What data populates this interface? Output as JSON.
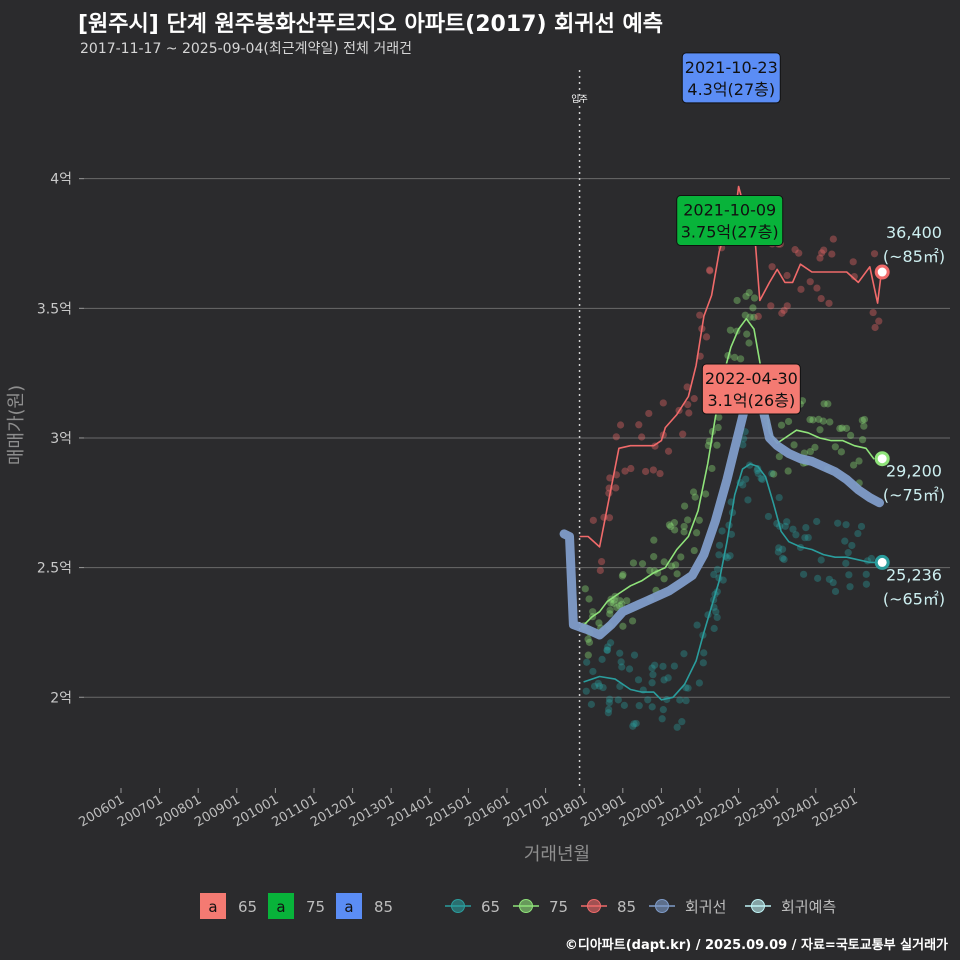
{
  "title": "[원주시] 단계 원주봉화산푸르지오 아파트(2017) 회귀선 예측",
  "subtitle": "2017-11-17 ~ 2025-09-04(최근계약일) 전체 거래건",
  "caption": "©디아파트(dapt.kr) / 2025.09.09 / 자료=국토교통부 실거래가",
  "colors": {
    "s65": "#2a9d9d",
    "s75": "#8fe37a",
    "s85": "#f06a6a",
    "regression": "#7f9cc9",
    "forecast": "#bff3f5",
    "bg": "#2b2b2d",
    "grid": "#6a6a6a"
  },
  "chart_data": {
    "type": "line",
    "title": "[원주시] 단계 원주봉화산푸르지오 아파트(2017) 회귀선 예측",
    "xlabel": "거래년월",
    "ylabel": "매매가(원)",
    "xlim": [
      2006.0,
      2026.0
    ],
    "ylim": [
      1.65,
      4.45
    ],
    "y_ticks": [
      {
        "value": 2.0,
        "label": "2억"
      },
      {
        "value": 2.5,
        "label": "2.5억"
      },
      {
        "value": 3.0,
        "label": "3억"
      },
      {
        "value": 3.5,
        "label": "3.5억"
      },
      {
        "value": 4.0,
        "label": "4억"
      }
    ],
    "x_ticks": [
      {
        "value": 2006,
        "label": "200601"
      },
      {
        "value": 2007,
        "label": "200701"
      },
      {
        "value": 2008,
        "label": "200801"
      },
      {
        "value": 2009,
        "label": "200901"
      },
      {
        "value": 2010,
        "label": "201001"
      },
      {
        "value": 2011,
        "label": "201101"
      },
      {
        "value": 2012,
        "label": "201201"
      },
      {
        "value": 2013,
        "label": "201301"
      },
      {
        "value": 2014,
        "label": "201401"
      },
      {
        "value": 2015,
        "label": "201501"
      },
      {
        "value": 2016,
        "label": "201601"
      },
      {
        "value": 2017,
        "label": "201701"
      },
      {
        "value": 2018,
        "label": "201801"
      },
      {
        "value": 2019,
        "label": "201901"
      },
      {
        "value": 2020,
        "label": "202001"
      },
      {
        "value": 2021,
        "label": "202101"
      },
      {
        "value": 2022,
        "label": "202201"
      },
      {
        "value": 2023,
        "label": "202301"
      },
      {
        "value": 2024,
        "label": "202401"
      },
      {
        "value": 2025,
        "label": "202501"
      }
    ],
    "move_in": {
      "x": 2017.88,
      "label": "입주"
    },
    "series": [
      {
        "name": "65",
        "key": "s65",
        "points": [
          [
            2018.0,
            2.06
          ],
          [
            2018.4,
            2.08
          ],
          [
            2018.8,
            2.07
          ],
          [
            2019.2,
            2.03
          ],
          [
            2019.5,
            2.02
          ],
          [
            2019.8,
            2.02
          ],
          [
            2020.0,
            1.99
          ],
          [
            2020.3,
            2.0
          ],
          [
            2020.6,
            2.05
          ],
          [
            2020.9,
            2.14
          ],
          [
            2021.1,
            2.25
          ],
          [
            2021.3,
            2.35
          ],
          [
            2021.5,
            2.45
          ],
          [
            2021.7,
            2.6
          ],
          [
            2021.9,
            2.78
          ],
          [
            2022.1,
            2.88
          ],
          [
            2022.3,
            2.9
          ],
          [
            2022.5,
            2.89
          ],
          [
            2022.7,
            2.85
          ],
          [
            2022.9,
            2.75
          ],
          [
            2023.1,
            2.64
          ],
          [
            2023.3,
            2.6
          ],
          [
            2023.6,
            2.58
          ],
          [
            2023.9,
            2.57
          ],
          [
            2024.2,
            2.55
          ],
          [
            2024.5,
            2.54
          ],
          [
            2024.8,
            2.54
          ],
          [
            2025.1,
            2.53
          ],
          [
            2025.4,
            2.52
          ],
          [
            2025.65,
            2.52
          ]
        ]
      },
      {
        "name": "75",
        "key": "s75",
        "points": [
          [
            2018.0,
            2.28
          ],
          [
            2018.2,
            2.31
          ],
          [
            2018.4,
            2.33
          ],
          [
            2018.6,
            2.37
          ],
          [
            2018.9,
            2.4
          ],
          [
            2019.2,
            2.43
          ],
          [
            2019.5,
            2.45
          ],
          [
            2019.8,
            2.48
          ],
          [
            2020.1,
            2.5
          ],
          [
            2020.4,
            2.57
          ],
          [
            2020.7,
            2.62
          ],
          [
            2020.95,
            2.72
          ],
          [
            2021.2,
            2.9
          ],
          [
            2021.4,
            3.08
          ],
          [
            2021.6,
            3.24
          ],
          [
            2021.8,
            3.35
          ],
          [
            2022.0,
            3.42
          ],
          [
            2022.2,
            3.46
          ],
          [
            2022.4,
            3.42
          ],
          [
            2022.6,
            3.25
          ],
          [
            2022.8,
            3.02
          ],
          [
            2023.0,
            2.98
          ],
          [
            2023.2,
            3.0
          ],
          [
            2023.5,
            3.03
          ],
          [
            2023.8,
            3.02
          ],
          [
            2024.1,
            3.0
          ],
          [
            2024.4,
            2.99
          ],
          [
            2024.7,
            2.99
          ],
          [
            2025.0,
            2.97
          ],
          [
            2025.3,
            2.96
          ],
          [
            2025.5,
            2.92
          ]
        ]
      },
      {
        "name": "85",
        "key": "s85",
        "points": [
          [
            2017.9,
            2.62
          ],
          [
            2018.1,
            2.62
          ],
          [
            2018.4,
            2.58
          ],
          [
            2018.9,
            2.96
          ],
          [
            2019.2,
            2.97
          ],
          [
            2019.5,
            2.97
          ],
          [
            2019.8,
            2.97
          ],
          [
            2020.0,
            2.99
          ],
          [
            2020.1,
            3.04
          ],
          [
            2020.4,
            3.09
          ],
          [
            2020.7,
            3.16
          ],
          [
            2020.9,
            3.28
          ],
          [
            2021.1,
            3.47
          ],
          [
            2021.3,
            3.55
          ],
          [
            2021.5,
            3.72
          ],
          [
            2021.7,
            3.82
          ],
          [
            2021.9,
            3.85
          ],
          [
            2022.0,
            3.97
          ],
          [
            2022.2,
            3.86
          ],
          [
            2022.4,
            3.82
          ],
          [
            2022.55,
            3.53
          ],
          [
            2022.8,
            3.6
          ],
          [
            2023.0,
            3.65
          ],
          [
            2023.2,
            3.6
          ],
          [
            2023.4,
            3.6
          ],
          [
            2023.6,
            3.67
          ],
          [
            2023.9,
            3.64
          ],
          [
            2024.2,
            3.64
          ],
          [
            2024.5,
            3.64
          ],
          [
            2024.8,
            3.64
          ],
          [
            2025.1,
            3.6
          ],
          [
            2025.4,
            3.66
          ],
          [
            2025.6,
            3.52
          ],
          [
            2025.7,
            3.64
          ]
        ]
      },
      {
        "name": "회귀선",
        "key": "regression",
        "points": [
          [
            2017.48,
            2.63
          ],
          [
            2017.62,
            2.62
          ],
          [
            2017.72,
            2.28
          ],
          [
            2017.9,
            2.27
          ],
          [
            2018.1,
            2.26
          ],
          [
            2018.4,
            2.24
          ],
          [
            2018.7,
            2.28
          ],
          [
            2019.0,
            2.33
          ],
          [
            2019.3,
            2.35
          ],
          [
            2019.6,
            2.37
          ],
          [
            2019.9,
            2.39
          ],
          [
            2020.2,
            2.41
          ],
          [
            2020.5,
            2.44
          ],
          [
            2020.8,
            2.47
          ],
          [
            2021.1,
            2.55
          ],
          [
            2021.4,
            2.68
          ],
          [
            2021.7,
            2.84
          ],
          [
            2021.9,
            2.96
          ],
          [
            2022.1,
            3.08
          ],
          [
            2022.3,
            3.2
          ],
          [
            2022.45,
            3.22
          ],
          [
            2022.6,
            3.13
          ],
          [
            2022.8,
            3.0
          ],
          [
            2023.0,
            2.97
          ],
          [
            2023.3,
            2.94
          ],
          [
            2023.6,
            2.92
          ],
          [
            2023.9,
            2.91
          ],
          [
            2024.2,
            2.89
          ],
          [
            2024.5,
            2.87
          ],
          [
            2024.8,
            2.84
          ],
          [
            2025.1,
            2.8
          ],
          [
            2025.4,
            2.77
          ],
          [
            2025.65,
            2.75
          ]
        ]
      }
    ],
    "annotations": [
      {
        "date": "2021-10-23",
        "price": "4.3억(27층)",
        "x": 2021.81,
        "y": 4.3,
        "color": "#5b8df5"
      },
      {
        "date": "2021-10-09",
        "price": "3.75억(27층)",
        "x": 2021.77,
        "y": 3.75,
        "color": "#08b33a"
      },
      {
        "date": "2022-04-30",
        "price": "3.1억(26층)",
        "x": 2022.33,
        "y": 3.1,
        "color": "#f47a72"
      }
    ],
    "end_labels": [
      {
        "value": "36,400",
        "area": "(~85㎡)",
        "y": 3.64,
        "color": "#f06a6a"
      },
      {
        "value": "29,200",
        "area": "(~75㎡)",
        "y": 2.92,
        "color": "#8fe37a"
      },
      {
        "value": "25,236",
        "area": "(~65㎡)",
        "y": 2.52,
        "color": "#2a9d9d"
      }
    ]
  },
  "legend": {
    "box_items": [
      {
        "glyph": "a",
        "label": "65",
        "color": "#f47a72"
      },
      {
        "glyph": "a",
        "label": "75",
        "color": "#08b33a"
      },
      {
        "glyph": "a",
        "label": "85",
        "color": "#5b8df5"
      }
    ],
    "line_items": [
      {
        "label": "65",
        "color": "#2a9d9d"
      },
      {
        "label": "75",
        "color": "#8fe37a"
      },
      {
        "label": "85",
        "color": "#f06a6a"
      },
      {
        "label": "회귀선",
        "color": "#7f9cc9"
      },
      {
        "label": "회귀예측",
        "color": "#bff3f5"
      }
    ]
  }
}
